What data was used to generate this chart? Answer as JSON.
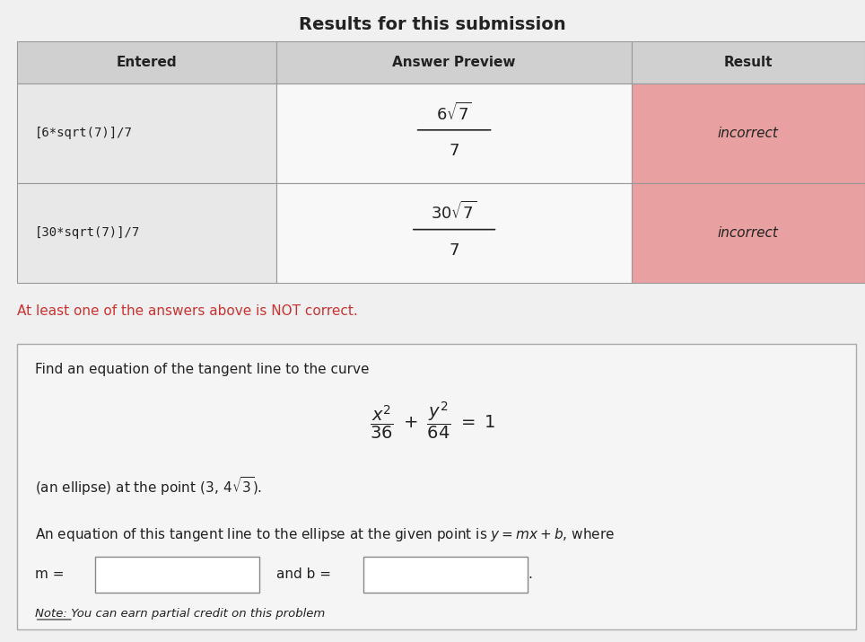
{
  "title": "Results for this submission",
  "table_headers": [
    "Entered",
    "Answer Preview",
    "Result"
  ],
  "row1_entered": "[6*sqrt(7)]/7",
  "row1_preview_num": "6√7",
  "row1_preview_den": "7",
  "row1_result": "incorrect",
  "row2_entered": "[30*sqrt(7)]/7",
  "row2_preview_num": "30√7",
  "row2_preview_den": "7",
  "row2_result": "incorrect",
  "alert_text": "At least one of the answers above is NOT correct.",
  "problem_intro": "Find an equation of the tangent line to the curve",
  "ellipse_eq": "$\\frac{x^2}{36} + \\frac{y^2}{64} = 1$",
  "point_text": "(an ellipse) at the point $(3, 4\\sqrt{3})$.",
  "answer_line": "An equation of this tangent line to the ellipse at the given point is $y = mx + b$, where",
  "m_label": "m =",
  "b_label": "and b =",
  "note_text": "Note: You can earn partial credit on this problem",
  "bg_color": "#f0f0f0",
  "header_bg": "#d0d0d0",
  "row_bg_light": "#e8e8e8",
  "row_bg_white": "#f8f8f8",
  "result_bg": "#e8a0a0",
  "result_bg2": "#d08080",
  "alert_color": "#cc3333",
  "border_color": "#bbbbbb",
  "text_color": "#222222",
  "problem_box_bg": "#f5f5f5",
  "input_box_color": "#ffffff"
}
